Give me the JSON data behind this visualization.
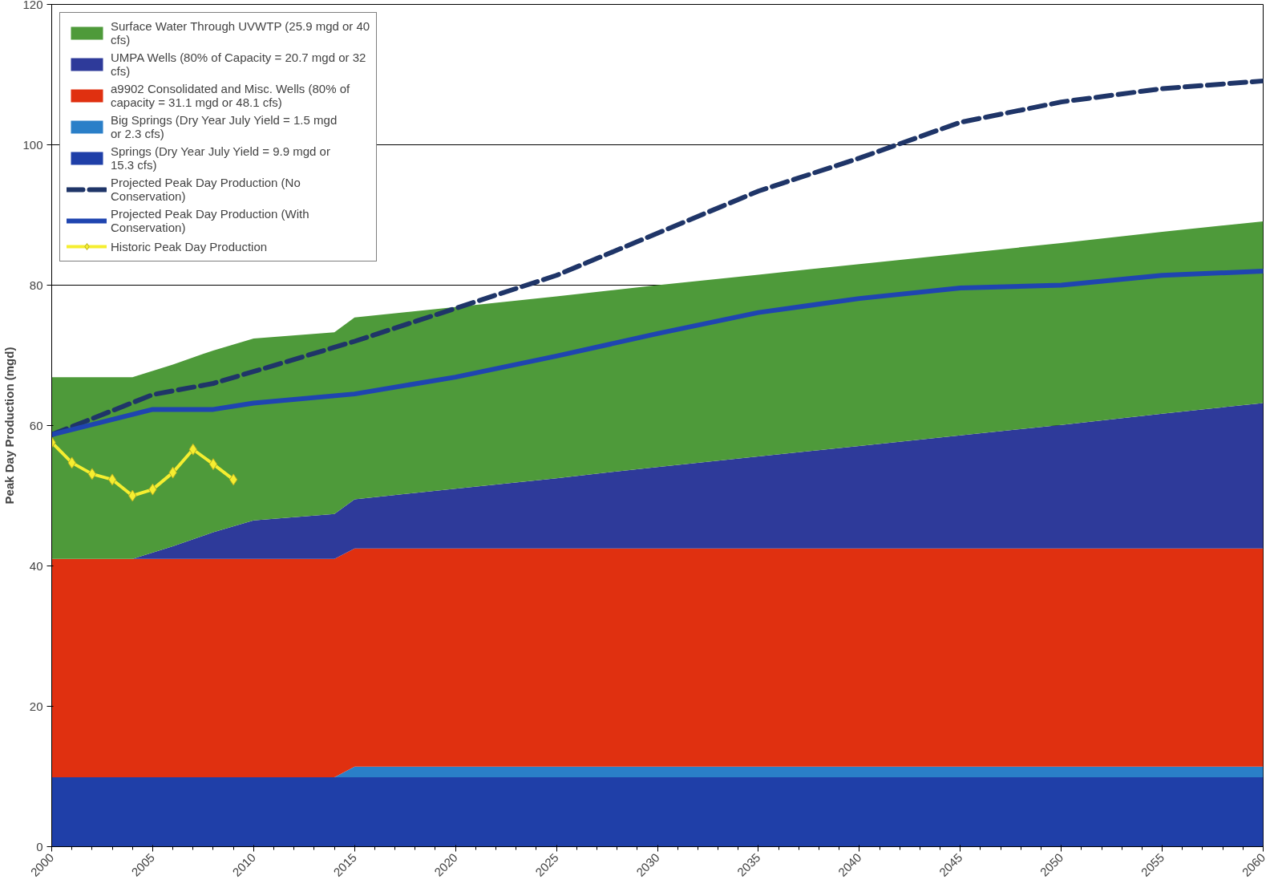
{
  "chart_data": {
    "type": "area",
    "stacked": true,
    "ylabel": "Peak Day Production (mgd)",
    "xlim": [
      2000,
      2060
    ],
    "xticks": [
      2000,
      2005,
      2010,
      2015,
      2020,
      2025,
      2030,
      2035,
      2040,
      2045,
      2050,
      2055,
      2060
    ],
    "ylim": [
      0,
      120
    ],
    "yticks": [
      0,
      20,
      40,
      60,
      80,
      100,
      120
    ],
    "grid": "y",
    "legend": "top left",
    "x": [
      2000,
      2004,
      2006,
      2008,
      2010,
      2014,
      2015,
      2020,
      2025,
      2030,
      2035,
      2040,
      2045,
      2050,
      2055,
      2060
    ],
    "series": [
      {
        "name": "Springs (Dry Year July Yield = 9.9 mgd or 15.3 cfs)",
        "color": "#1f3fa8",
        "values": [
          9.9,
          9.9,
          9.9,
          9.9,
          9.9,
          9.9,
          9.9,
          9.9,
          9.9,
          9.9,
          9.9,
          9.9,
          9.9,
          9.9,
          9.9,
          9.9
        ]
      },
      {
        "name": "Big Springs (Dry Year July Yield = 1.5 mgd or 2.3 cfs)",
        "color": "#2a7fc8",
        "values": [
          0,
          0,
          0,
          0,
          0,
          0,
          1.5,
          1.5,
          1.5,
          1.5,
          1.5,
          1.5,
          1.5,
          1.5,
          1.5,
          1.5
        ]
      },
      {
        "name": "a9902 Consolidated and Misc. Wells (80% of capacity = 31.1 mgd or 48.1 cfs)",
        "color": "#e03010",
        "values": [
          31.1,
          31.1,
          31.1,
          31.1,
          31.1,
          31.1,
          31.1,
          31.1,
          31.1,
          31.1,
          31.1,
          31.1,
          31.1,
          31.1,
          31.1,
          31.1
        ]
      },
      {
        "name": "UMPA Wells (80% of Capacity = 20.7 mgd or 32 cfs)",
        "color": "#2e3a9a",
        "values": [
          0,
          0,
          1.8,
          3.8,
          5.5,
          6.4,
          7.0,
          8.5,
          10.0,
          11.6,
          13.1,
          14.6,
          16.1,
          17.6,
          19.2,
          20.7
        ]
      },
      {
        "name": "Surface Water Through UVWTP (25.9 mgd or 40 cfs)",
        "color": "#4e9a3a",
        "values": [
          25.9,
          25.9,
          25.9,
          25.9,
          25.9,
          25.9,
          25.9,
          25.9,
          25.9,
          25.9,
          25.9,
          25.9,
          25.9,
          25.9,
          25.9,
          25.9
        ]
      },
      {
        "name": "Projected Peak Day Production (No Conservation)",
        "type": "line",
        "line_style": "dashed",
        "marker": "none",
        "color": "#1f3568",
        "x": [
          2000,
          2005,
          2008,
          2010,
          2015,
          2020,
          2025,
          2030,
          2035,
          2040,
          2045,
          2050,
          2055,
          2060
        ],
        "values": [
          58.7,
          64.4,
          66,
          67.7,
          72,
          76.7,
          81.4,
          87.4,
          93.4,
          98.1,
          103.2,
          106.1,
          108,
          109.1
        ]
      },
      {
        "name": "Projected Peak Day Production (With Conservation)",
        "type": "line",
        "line_style": "solid",
        "marker": "none",
        "color": "#1f45b0",
        "x": [
          2000,
          2005,
          2008,
          2010,
          2015,
          2020,
          2025,
          2030,
          2035,
          2040,
          2045,
          2050,
          2055,
          2060
        ],
        "values": [
          58.7,
          62.3,
          62.3,
          63.2,
          64.5,
          66.9,
          69.9,
          73.1,
          76.1,
          78.1,
          79.6,
          80,
          81.4,
          82
        ]
      },
      {
        "name": "Historic Peak Day Production",
        "type": "line",
        "line_style": "solid",
        "marker": "diamond",
        "color": "#f5ee30",
        "x": [
          2000,
          2001,
          2002,
          2003,
          2004,
          2005,
          2006,
          2007,
          2008,
          2009
        ],
        "values": [
          57.6,
          54.7,
          53.1,
          52.3,
          50.0,
          50.9,
          53.3,
          56.6,
          54.5,
          52.3
        ]
      }
    ]
  }
}
